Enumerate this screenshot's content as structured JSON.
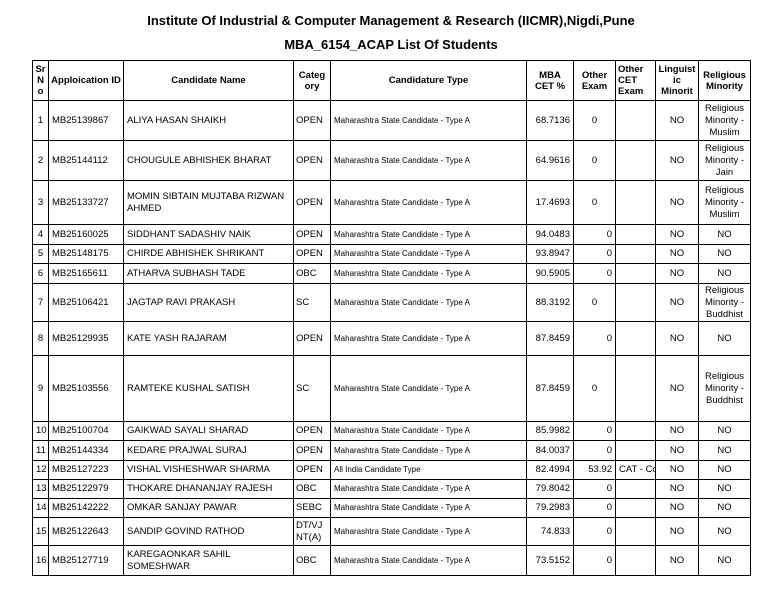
{
  "page": {
    "title": "Institute Of Industrial & Computer Management & Research (IICMR),Nigdi,Pune",
    "subtitle": "MBA_6154_ACAP List Of Students"
  },
  "table": {
    "columns": [
      {
        "label": "Sr No"
      },
      {
        "label": "Apploication ID"
      },
      {
        "label": "Candidate Name"
      },
      {
        "label": "Category"
      },
      {
        "label": "Candidature Type"
      },
      {
        "label": "MBA CET %"
      },
      {
        "label": "Other Exam"
      },
      {
        "label": "Other CET Exam"
      },
      {
        "label": "Linguistic Minorit"
      },
      {
        "label": "Religious Minority"
      }
    ],
    "rows": [
      {
        "sr": "1",
        "application_id": "MB25139867",
        "candidate_name": "ALIYA HASAN SHAIKH",
        "category": "OPEN",
        "candidature_type": "Maharashtra State Candidate - Type A",
        "mba_cet_pct": "68.7136",
        "other_exam": "0",
        "other_cet_exam": "",
        "linguistic_minority": "NO",
        "religious_minority": "Religious Minority - Muslim"
      },
      {
        "sr": "2",
        "application_id": "MB25144112",
        "candidate_name": "CHOUGULE ABHISHEK BHARAT",
        "category": "OPEN",
        "candidature_type": "Maharashtra State Candidate - Type A",
        "mba_cet_pct": "64.9616",
        "other_exam": "0",
        "other_cet_exam": "",
        "linguistic_minority": "NO",
        "religious_minority": "Religious Minority - Jain"
      },
      {
        "sr": "3",
        "application_id": "MB25133727",
        "candidate_name": "MOMIN SIBTAIN MUJTABA RIZWAN AHMED",
        "category": "OPEN",
        "candidature_type": "Maharashtra State Candidate - Type A",
        "mba_cet_pct": "17.4693",
        "other_exam": "0",
        "other_cet_exam": "",
        "linguistic_minority": "NO",
        "religious_minority": "Religious Minority - Muslim"
      },
      {
        "sr": "4",
        "application_id": "MB25160025",
        "candidate_name": "SIDDHANT SADASHIV NAIK",
        "category": "OPEN",
        "candidature_type": "Maharashtra State Candidate - Type A",
        "mba_cet_pct": "94.0483",
        "other_exam": "0",
        "other_cet_exam": "",
        "linguistic_minority": "NO",
        "religious_minority": "NO"
      },
      {
        "sr": "5",
        "application_id": "MB25148175",
        "candidate_name": "CHIRDE ABHISHEK SHRIKANT",
        "category": "OPEN",
        "candidature_type": "Maharashtra State Candidate - Type A",
        "mba_cet_pct": "93.8947",
        "other_exam": "0",
        "other_cet_exam": "",
        "linguistic_minority": "NO",
        "religious_minority": "NO"
      },
      {
        "sr": "6",
        "application_id": "MB25165611",
        "candidate_name": "ATHARVA SUBHASH TADE",
        "category": "OBC",
        "candidature_type": "Maharashtra State Candidate - Type A",
        "mba_cet_pct": "90.5905",
        "other_exam": "0",
        "other_cet_exam": "",
        "linguistic_minority": "NO",
        "religious_minority": "NO"
      },
      {
        "sr": "7",
        "application_id": "MB25106421",
        "candidate_name": "JAGTAP RAVI PRAKASH",
        "category": "SC",
        "candidature_type": "Maharashtra State Candidate - Type A",
        "mba_cet_pct": "88.3192",
        "other_exam": "0",
        "other_cet_exam": "",
        "linguistic_minority": "NO",
        "religious_minority": "Religious Minority - Buddhist"
      },
      {
        "sr": "8",
        "application_id": "MB25129935",
        "candidate_name": "KATE YASH RAJARAM",
        "category": "OPEN",
        "candidature_type": "Maharashtra State Candidate - Type A",
        "mba_cet_pct": "87.8459",
        "other_exam": "0",
        "other_cet_exam": "",
        "linguistic_minority": "NO",
        "religious_minority": "NO"
      },
      {
        "sr": "9",
        "application_id": "MB25103556",
        "candidate_name": "RAMTEKE KUSHAL SATISH",
        "category": "SC",
        "candidature_type": "Maharashtra State Candidate - Type A",
        "mba_cet_pct": "87.8459",
        "other_exam": "0",
        "other_cet_exam": "",
        "linguistic_minority": "NO",
        "religious_minority": "Religious Minority - Buddhist"
      },
      {
        "sr": "10",
        "application_id": "MB25100704",
        "candidate_name": "GAIKWAD SAYALI SHARAD",
        "category": "OPEN",
        "candidature_type": "Maharashtra State Candidate - Type A",
        "mba_cet_pct": "85.9982",
        "other_exam": "0",
        "other_cet_exam": "",
        "linguistic_minority": "NO",
        "religious_minority": "NO"
      },
      {
        "sr": "11",
        "application_id": "MB25144334",
        "candidate_name": "KEDARE PRAJWAL SURAJ",
        "category": "OPEN",
        "candidature_type": "Maharashtra State Candidate - Type A",
        "mba_cet_pct": "84.0037",
        "other_exam": "0",
        "other_cet_exam": "",
        "linguistic_minority": "NO",
        "religious_minority": "NO"
      },
      {
        "sr": "12",
        "application_id": "MB25127223",
        "candidate_name": "VISHAL VISHESHWAR SHARMA",
        "category": "OPEN",
        "candidature_type": "All India Candidate Type",
        "mba_cet_pct": "82.4994",
        "other_exam": "53.92",
        "other_cet_exam": "CAT - Co",
        "linguistic_minority": "NO",
        "religious_minority": "NO"
      },
      {
        "sr": "13",
        "application_id": "MB25122979",
        "candidate_name": "THOKARE DHANANJAY RAJESH",
        "category": "OBC",
        "candidature_type": "Maharashtra State Candidate - Type A",
        "mba_cet_pct": "79.8042",
        "other_exam": "0",
        "other_cet_exam": "",
        "linguistic_minority": "NO",
        "religious_minority": "NO"
      },
      {
        "sr": "14",
        "application_id": "MB25142222",
        "candidate_name": "OMKAR SANJAY PAWAR",
        "category": "SEBC",
        "candidature_type": "Maharashtra State Candidate - Type A",
        "mba_cet_pct": "79.2983",
        "other_exam": "0",
        "other_cet_exam": "",
        "linguistic_minority": "NO",
        "religious_minority": "NO"
      },
      {
        "sr": "15",
        "application_id": "MB25122643",
        "candidate_name": "SANDIP GOVIND RATHOD",
        "category": "DT/VJ NT(A)",
        "candidature_type": "Maharashtra State Candidate - Type A",
        "mba_cet_pct": "74.833",
        "other_exam": "0",
        "other_cet_exam": "",
        "linguistic_minority": "NO",
        "religious_minority": "NO"
      },
      {
        "sr": "16",
        "application_id": "MB25127719",
        "candidate_name": "KAREGAONKAR SAHIL SOMESHWAR",
        "category": "OBC",
        "candidature_type": "Maharashtra State Candidate - Type A",
        "mba_cet_pct": "73.5152",
        "other_exam": "0",
        "other_cet_exam": "",
        "linguistic_minority": "NO",
        "religious_minority": "NO"
      }
    ]
  }
}
